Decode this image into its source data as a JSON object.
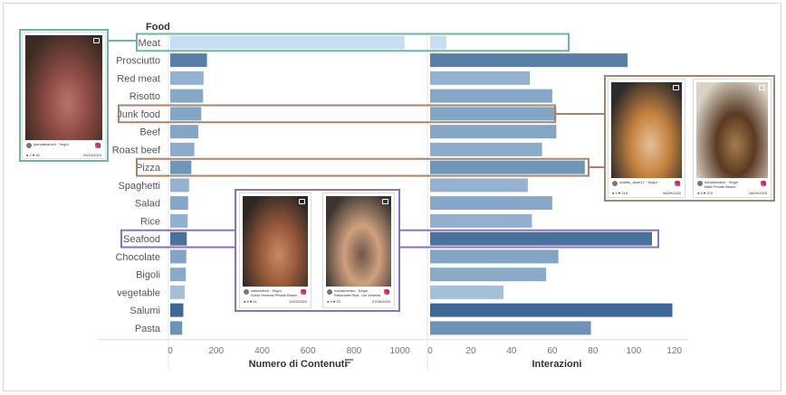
{
  "chart_data": {
    "type": "bar",
    "header": "Food",
    "categories": [
      "Meat",
      "Prosciutto",
      "Red meat",
      "Risotto",
      "Junk food",
      "Beef",
      "Roast beef",
      "Pizza",
      "Spaghetti",
      "Salad",
      "Rice",
      "Seafood",
      "Chocolate",
      "Bigoli",
      "vegetable",
      "Salumi",
      "Pasta"
    ],
    "series": [
      {
        "name": "Numero di Contenuti",
        "values": [
          1020,
          160,
          145,
          143,
          135,
          122,
          105,
          92,
          82,
          78,
          76,
          72,
          70,
          68,
          63,
          57,
          52
        ]
      },
      {
        "name": "Interazioni",
        "values": [
          8,
          97,
          49,
          60,
          62,
          62,
          55,
          76,
          48,
          60,
          50,
          109,
          63,
          57,
          36,
          119,
          79
        ]
      }
    ],
    "shade_values": [
      8,
      97,
      49,
      60,
      62,
      62,
      55,
      76,
      48,
      60,
      50,
      109,
      63,
      57,
      36,
      119,
      79
    ],
    "xlabel_left": "Numero di Contenuti",
    "xlabel_right": "Interazioni",
    "xlim_left": [
      0,
      1100
    ],
    "xlim_right": [
      0,
      125
    ],
    "xticks_left": [
      "0",
      "200",
      "400",
      "600",
      "800",
      "1000"
    ],
    "xticks_right": [
      "0",
      "20",
      "40",
      "60",
      "80",
      "100",
      "120"
    ],
    "highlights": [
      {
        "category": "Meat",
        "color": "#6fb3a4"
      },
      {
        "category": "Junk food",
        "color": "#a8836e"
      },
      {
        "category": "Pizza",
        "color": "#a8836e"
      },
      {
        "category": "Seafood",
        "color": "#8a73b8"
      }
    ],
    "grid": false,
    "sort_icon": "sort-descending-icon"
  },
  "posts": [
    {
      "id": "meat",
      "user": "joannabianchi · Segui",
      "likes": "2",
      "comments": "40",
      "date": "20/10/2019",
      "border_color": "#6fb3a4",
      "photo_colors": [
        "#3a2a22",
        "#8e4b45",
        "#b9736e"
      ]
    },
    {
      "id": "seafood1",
      "user": "valeandrea · Segui",
      "caption": "Sushi Venezia Private Beach",
      "likes": "8",
      "comments": "41",
      "date": "12/02/2020",
      "border_color": "#8a73b8",
      "photo_colors": [
        "#2d2724",
        "#9a5a3c",
        "#c88b63"
      ]
    },
    {
      "id": "seafood2",
      "user": "mariannenko · Segui",
      "caption": "Ristorante Riva, Los Venezia",
      "likes": "9",
      "comments": "33",
      "date": "27/08/2020",
      "border_color": "#8a73b8",
      "photo_colors": [
        "#3b3430",
        "#cfa07e",
        "#6d564a"
      ]
    },
    {
      "id": "pizza",
      "user": "matteo_dean17 · Segui",
      "likes": "4",
      "comments": "216",
      "date": "08/09/2020",
      "border_color": "#a8836e",
      "photo_colors": [
        "#2f2b2a",
        "#c7833f",
        "#e2c09a"
      ]
    },
    {
      "id": "junk",
      "user": "ridhambeach · Segui",
      "caption": "Italia Private Beach",
      "likes": "5",
      "comments": "370",
      "date": "28/09/2020",
      "border_color": "#a8836e",
      "photo_colors": [
        "#d9d2c5",
        "#5b3a25",
        "#a67c4a"
      ]
    }
  ]
}
